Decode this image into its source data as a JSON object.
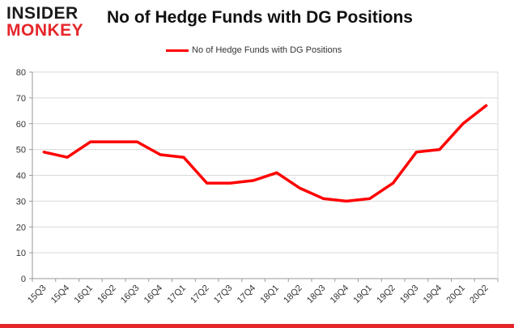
{
  "brand": {
    "logo_top": "INSIDER",
    "logo_bottom": "MONKEY",
    "accent_color": "#e5252a"
  },
  "chart_data": {
    "type": "line",
    "title": "No of Hedge Funds with DG Positions",
    "xlabel": "",
    "ylabel": "",
    "categories": [
      "15Q3",
      "15Q4",
      "16Q1",
      "16Q2",
      "16Q3",
      "16Q4",
      "17Q1",
      "17Q2",
      "17Q3",
      "17Q4",
      "18Q1",
      "18Q2",
      "18Q3",
      "18Q4",
      "19Q1",
      "19Q2",
      "19Q3",
      "19Q4",
      "20Q1",
      "20Q2"
    ],
    "series": [
      {
        "name": "No of Hedge Funds with DG Positions",
        "color": "#ff0000",
        "values": [
          49,
          47,
          53,
          53,
          53,
          48,
          47,
          37,
          37,
          38,
          41,
          35,
          31,
          30,
          31,
          37,
          49,
          50,
          60,
          67
        ]
      }
    ],
    "ylim": [
      0,
      80
    ],
    "yticks": [
      0,
      10,
      20,
      30,
      40,
      50,
      60,
      70,
      80
    ],
    "grid": true,
    "legend_position": "top-center"
  }
}
